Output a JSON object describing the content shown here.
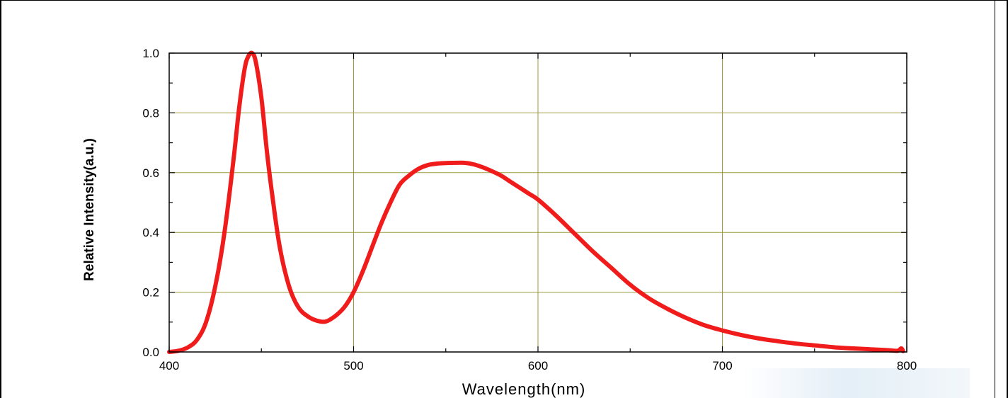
{
  "chart_data": {
    "type": "line",
    "title": "",
    "xlabel": "Wavelength(nm)",
    "ylabel": "Relative Intensity(a.u.)",
    "xlim": [
      400,
      800
    ],
    "ylim": [
      0,
      1.0
    ],
    "x_ticks": [
      400,
      500,
      600,
      700,
      800
    ],
    "x_tick_labels": [
      "400",
      "500",
      "600",
      "700",
      "800"
    ],
    "y_ticks": [
      0,
      0.2,
      0.4,
      0.6,
      0.8,
      1.0
    ],
    "y_tick_labels": [
      "0.0",
      "0.2",
      "0.4",
      "0.6",
      "0.8",
      "1.0"
    ],
    "grid": true,
    "legend": "none",
    "colors": {
      "series": "#f01c1c",
      "grid": "#9a9a3c",
      "axes": "#000000"
    },
    "series": [
      {
        "x": [
          400,
          405,
          410,
          415,
          420,
          425,
          430,
          435,
          438,
          441,
          443,
          445,
          447,
          450,
          453,
          456,
          460,
          465,
          470,
          475,
          480,
          485,
          490,
          495,
          500,
          505,
          510,
          515,
          520,
          525,
          530,
          535,
          540,
          545,
          550,
          555,
          560,
          565,
          570,
          575,
          580,
          585,
          590,
          595,
          600,
          610,
          620,
          630,
          640,
          650,
          660,
          670,
          680,
          690,
          700,
          710,
          720,
          730,
          740,
          750,
          760,
          770,
          780,
          790,
          795,
          797,
          798
        ],
        "y": [
          0.0,
          0.004,
          0.015,
          0.04,
          0.1,
          0.22,
          0.4,
          0.65,
          0.82,
          0.95,
          0.99,
          1.0,
          0.97,
          0.85,
          0.67,
          0.52,
          0.35,
          0.22,
          0.15,
          0.12,
          0.105,
          0.102,
          0.12,
          0.15,
          0.2,
          0.27,
          0.35,
          0.43,
          0.5,
          0.56,
          0.59,
          0.612,
          0.625,
          0.63,
          0.632,
          0.633,
          0.633,
          0.628,
          0.618,
          0.605,
          0.59,
          0.57,
          0.55,
          0.53,
          0.51,
          0.455,
          0.395,
          0.335,
          0.28,
          0.225,
          0.18,
          0.145,
          0.115,
          0.09,
          0.072,
          0.057,
          0.045,
          0.036,
          0.028,
          0.022,
          0.016,
          0.012,
          0.009,
          0.006,
          0.004,
          0.012,
          0.003
        ]
      }
    ]
  }
}
